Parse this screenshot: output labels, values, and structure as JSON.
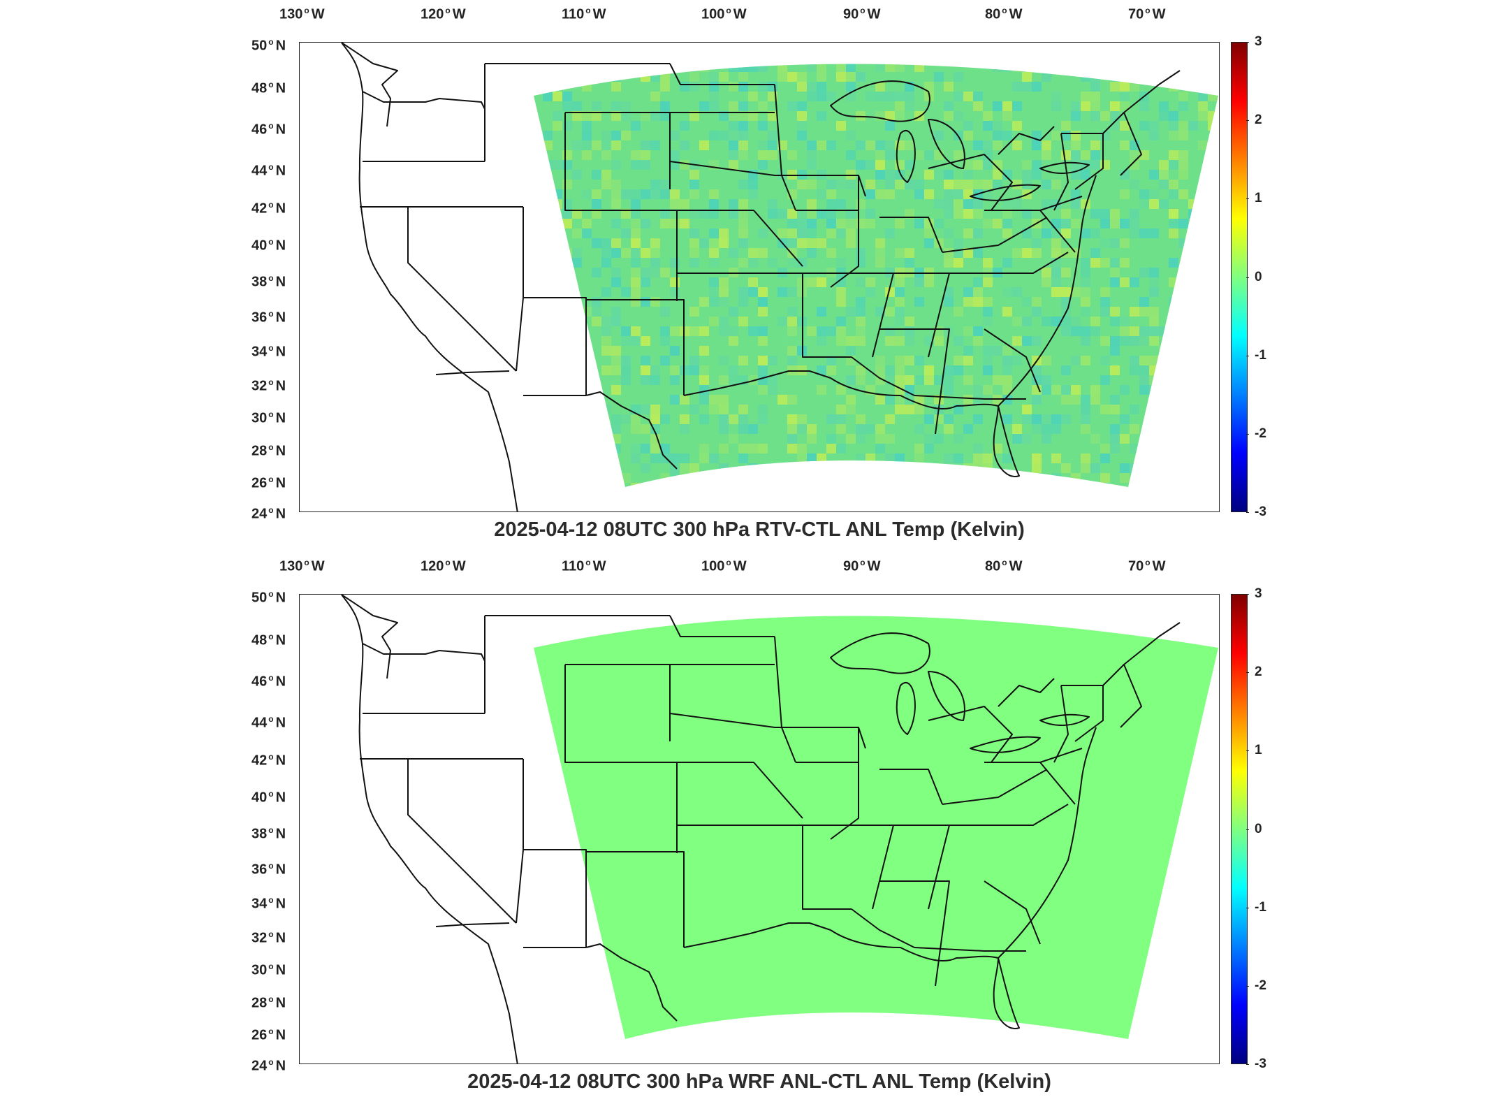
{
  "longitude_labels": [
    "130",
    "120",
    "110",
    "100",
    "90",
    "80",
    "70"
  ],
  "longitude_suffix": "W",
  "latitude_labels": [
    "50",
    "48",
    "46",
    "44",
    "42",
    "40",
    "38",
    "36",
    "34",
    "32",
    "30",
    "28",
    "26",
    "24"
  ],
  "latitude_suffix": "N",
  "degree_symbol": "o",
  "colorbar": {
    "ticks": [
      "3",
      "2",
      "1",
      "0",
      "-1",
      "-2",
      "-3"
    ],
    "colormap": "jet",
    "range": [
      -3,
      3
    ]
  },
  "panels": [
    {
      "title": "2025-04-12 08UTC 300 hPa RTV-CTL ANL Temp (Kelvin)",
      "field": "mottled near-zero anomalies, green/cyan/yellow",
      "field_colors": [
        "#6fe08a",
        "#5fd7a8",
        "#9de86a",
        "#c6ee52",
        "#48d1c0"
      ]
    },
    {
      "title": "2025-04-12 08UTC 300 hPa WRF ANL-CTL ANL Temp (Kelvin)",
      "field": "uniform zero",
      "field_colors": [
        "#80ff80"
      ]
    }
  ],
  "colors": {
    "outline": "#111111",
    "background": "#ffffff",
    "uniform_zero": "#80ff80"
  }
}
